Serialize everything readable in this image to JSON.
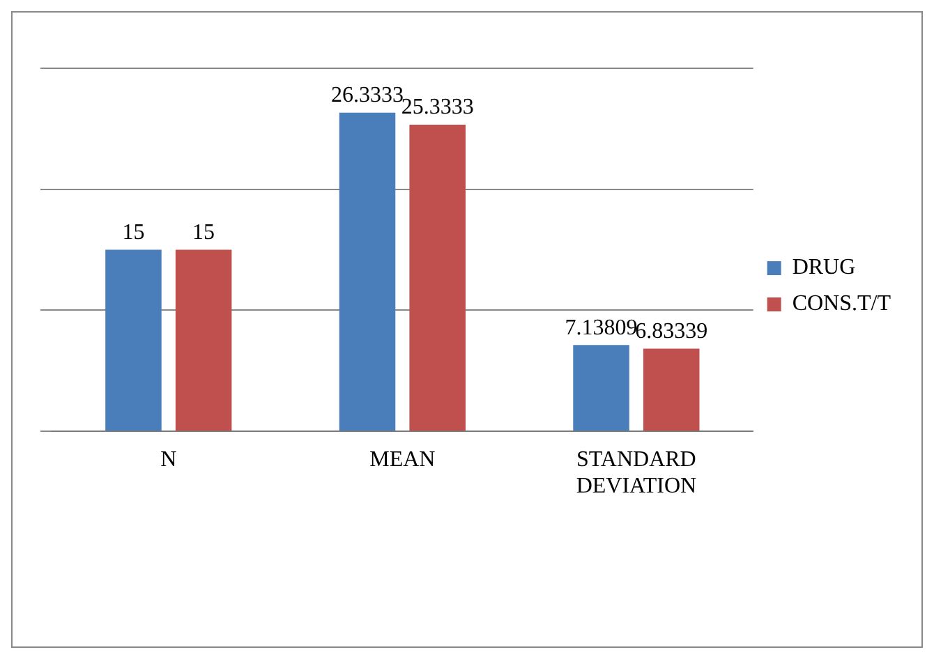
{
  "chart_data": {
    "type": "bar",
    "categories": [
      "N",
      "MEAN",
      "STANDARD DEVIATION"
    ],
    "series": [
      {
        "name": "DRUG",
        "color": "#4a7ebb",
        "values": [
          15,
          26.3333,
          7.13809
        ]
      },
      {
        "name": "CONS.T/T",
        "color": "#c0504d",
        "values": [
          15,
          25.3333,
          6.83339
        ]
      }
    ],
    "ylim": [
      0,
      30
    ],
    "yticks": [
      {
        "value": 0,
        "label": null
      },
      {
        "value": 10,
        "label": null
      },
      {
        "value": 20,
        "label": null
      },
      {
        "value": 30,
        "label": null
      }
    ],
    "tick_labels": "x",
    "grid": "y",
    "legend": "right",
    "data_labels": true
  }
}
